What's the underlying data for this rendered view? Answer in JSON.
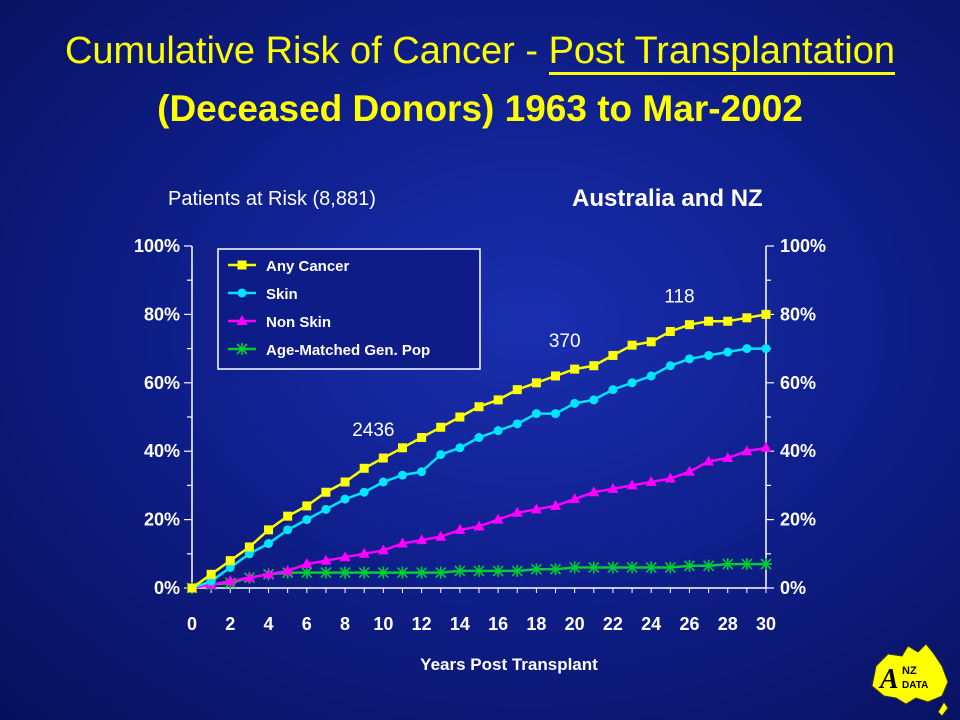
{
  "header": {
    "title_part1": "Cumulative Risk of Cancer - ",
    "title_part2": "Post Transplantation",
    "title_line2": "(Deceased Donors) 1963 to Mar-2002",
    "patients_at_risk": "Patients at Risk  (8,881)",
    "region": "Australia and NZ"
  },
  "logo": {
    "text_a": "A",
    "text_nz": "NZ",
    "text_data": "DATA"
  },
  "colors": {
    "background": "#0f1f8c",
    "any_cancer": "#ffff00",
    "skin": "#00e5ff",
    "non_skin": "#ff00ff",
    "gen_pop": "#00cc33"
  },
  "chart_data": {
    "type": "line",
    "xlabel": "Years Post Transplant",
    "ylabel": "",
    "xlim": [
      0,
      30
    ],
    "ylim": [
      0,
      100
    ],
    "x_ticks": [
      "0",
      "2",
      "4",
      "6",
      "8",
      "10",
      "12",
      "14",
      "16",
      "18",
      "20",
      "22",
      "24",
      "26",
      "28",
      "30"
    ],
    "y_ticks": [
      "0%",
      "20%",
      "40%",
      "60%",
      "80%",
      "100%"
    ],
    "x": [
      0,
      1,
      2,
      3,
      4,
      5,
      6,
      7,
      8,
      9,
      10,
      11,
      12,
      13,
      14,
      15,
      16,
      17,
      18,
      19,
      20,
      21,
      22,
      23,
      24,
      25,
      26,
      27,
      28,
      29,
      30
    ],
    "series": [
      {
        "name": "Any Cancer",
        "color": "#ffff00",
        "marker": "square",
        "values": [
          0,
          4,
          8,
          12,
          17,
          21,
          24,
          28,
          31,
          35,
          38,
          41,
          44,
          47,
          50,
          53,
          55,
          58,
          60,
          62,
          64,
          65,
          68,
          71,
          72,
          75,
          77,
          78,
          78,
          79,
          80
        ]
      },
      {
        "name": "Skin",
        "color": "#00e5ff",
        "marker": "circle",
        "values": [
          0,
          2,
          6,
          10,
          13,
          17,
          20,
          23,
          26,
          28,
          31,
          33,
          34,
          39,
          41,
          44,
          46,
          48,
          51,
          51,
          54,
          55,
          58,
          60,
          62,
          65,
          67,
          68,
          69,
          70,
          70
        ]
      },
      {
        "name": "Non Skin",
        "color": "#ff00ff",
        "marker": "triangle",
        "values": [
          0,
          1,
          2,
          3,
          4,
          5,
          7,
          8,
          9,
          10,
          11,
          13,
          14,
          15,
          17,
          18,
          20,
          22,
          23,
          24,
          26,
          28,
          29,
          30,
          31,
          32,
          34,
          37,
          38,
          40,
          41
        ]
      },
      {
        "name": "Age-Matched Gen. Pop",
        "color": "#00cc33",
        "marker": "star",
        "values": [
          0,
          1,
          1.5,
          3,
          4,
          4.5,
          4.5,
          4.5,
          4.5,
          4.5,
          4.5,
          4.5,
          4.5,
          4.5,
          5,
          5,
          5,
          5,
          5.5,
          5.5,
          6,
          6,
          6,
          6,
          6,
          6,
          6.5,
          6.5,
          7,
          7,
          7
        ]
      }
    ],
    "annotations": [
      {
        "text": "2436",
        "x": 10,
        "anchor_series": "Any Cancer"
      },
      {
        "text": "370",
        "x": 20,
        "anchor_series": "Any Cancer"
      },
      {
        "text": "118",
        "x": 26,
        "anchor_series": "Any Cancer"
      }
    ],
    "legend": "top-left inside"
  }
}
